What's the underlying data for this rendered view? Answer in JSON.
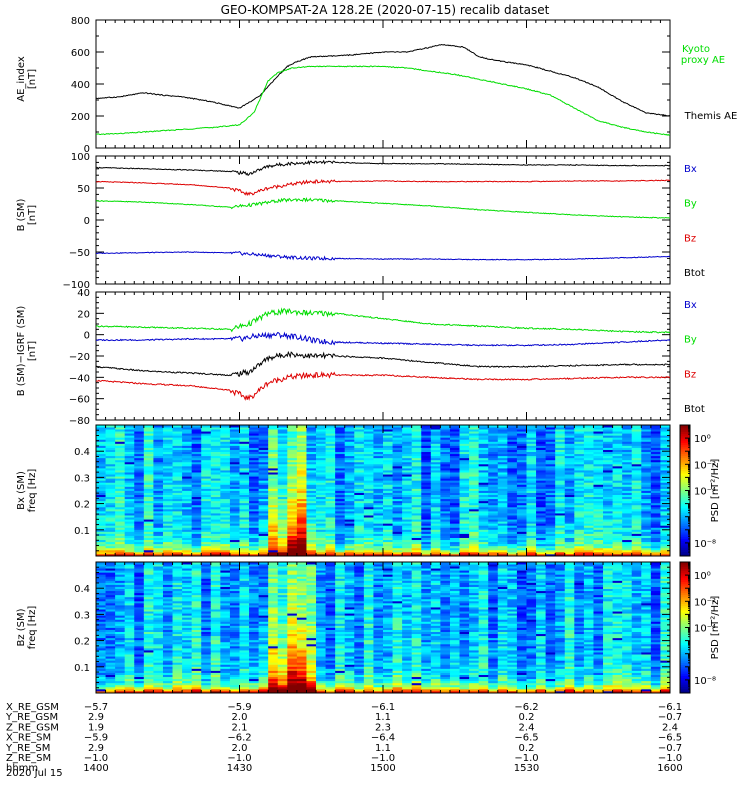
{
  "title": "GEO-KOMPSAT-2A 128.2E (2020-07-15) recalib dataset",
  "date_label": "2020 Jul 15",
  "chart_data": [
    {
      "type": "line",
      "id": "ae",
      "ylabel": [
        "AE_index",
        "[nT]"
      ],
      "ylim": [
        0,
        800
      ],
      "yticks": [
        0,
        200,
        400,
        600,
        800
      ],
      "yminor": 100,
      "xlim": [
        0,
        120
      ],
      "x_unit": "minutes after 14:00 UT",
      "series": [
        {
          "name": "Themis AE",
          "color": "#000000",
          "x": [
            0,
            5,
            10,
            14,
            18,
            24,
            30,
            34,
            38,
            40,
            42,
            45,
            50,
            55,
            60,
            65,
            70,
            72,
            74,
            77,
            80,
            85,
            90,
            95,
            100,
            105,
            110,
            115,
            120
          ],
          "values": [
            310,
            320,
            345,
            330,
            320,
            290,
            250,
            320,
            450,
            510,
            540,
            570,
            575,
            585,
            600,
            600,
            630,
            645,
            640,
            630,
            570,
            540,
            520,
            480,
            440,
            380,
            290,
            220,
            200
          ]
        },
        {
          "name": "Kyoto proxy AE",
          "color": "#00dd00",
          "x": [
            0,
            5,
            10,
            15,
            20,
            25,
            30,
            33,
            36,
            38,
            41,
            45,
            50,
            55,
            60,
            65,
            70,
            75,
            80,
            85,
            90,
            95,
            100,
            105,
            110,
            115,
            120
          ],
          "values": [
            85,
            90,
            100,
            110,
            120,
            130,
            145,
            220,
            420,
            470,
            500,
            510,
            510,
            510,
            510,
            500,
            480,
            460,
            430,
            400,
            370,
            330,
            250,
            170,
            130,
            100,
            80
          ]
        }
      ],
      "legend_order": [
        "Kyoto",
        "proxy AE",
        "Themis AE"
      ]
    },
    {
      "type": "line",
      "id": "bsm",
      "ylabel": [
        "B (SM)",
        "[nT]"
      ],
      "ylim": [
        -100,
        100
      ],
      "yticks": [
        -100,
        -50,
        0,
        50,
        100
      ],
      "yminor": 10,
      "xlim": [
        0,
        120
      ],
      "series": [
        {
          "name": "Bx",
          "color": "#0000cc",
          "x": [
            0,
            10,
            20,
            30,
            35,
            40,
            45,
            50,
            60,
            70,
            80,
            90,
            100,
            110,
            120
          ],
          "values": [
            -52,
            -51,
            -50,
            -52,
            -55,
            -58,
            -60,
            -60,
            -61,
            -61,
            -62,
            -62,
            -61,
            -59,
            -57
          ]
        },
        {
          "name": "By",
          "color": "#00dd00",
          "x": [
            0,
            10,
            20,
            28,
            33,
            38,
            42,
            50,
            60,
            70,
            80,
            90,
            100,
            110,
            120
          ],
          "values": [
            30,
            28,
            24,
            20,
            24,
            30,
            32,
            30,
            26,
            22,
            16,
            12,
            8,
            5,
            3
          ]
        },
        {
          "name": "Bz",
          "color": "#dd0000",
          "x": [
            0,
            10,
            20,
            28,
            32,
            36,
            40,
            45,
            50,
            60,
            70,
            80,
            90,
            100,
            110,
            120
          ],
          "values": [
            60,
            58,
            55,
            50,
            40,
            50,
            55,
            60,
            60,
            61,
            60,
            60,
            60,
            61,
            61,
            62
          ]
        },
        {
          "name": "Btot",
          "color": "#000000",
          "x": [
            0,
            10,
            20,
            28,
            32,
            36,
            40,
            45,
            50,
            60,
            70,
            80,
            90,
            100,
            110,
            120
          ],
          "values": [
            82,
            80,
            78,
            76,
            72,
            84,
            88,
            90,
            90,
            88,
            88,
            87,
            86,
            86,
            85,
            85
          ]
        }
      ],
      "legend_order": [
        "Bx",
        "By",
        "Bz",
        "Btot"
      ]
    },
    {
      "type": "line",
      "id": "dbsm",
      "ylabel": [
        "B (SM)−IGRF (SM)",
        "[nT]"
      ],
      "ylim": [
        -80,
        40
      ],
      "yticks": [
        -80,
        -60,
        -40,
        -20,
        0,
        20,
        40
      ],
      "yminor": 5,
      "xlim": [
        0,
        120
      ],
      "series": [
        {
          "name": "Bx",
          "color": "#0000cc",
          "x": [
            0,
            10,
            20,
            30,
            34,
            38,
            42,
            46,
            50,
            60,
            70,
            80,
            90,
            100,
            110,
            120
          ],
          "values": [
            -5,
            -5,
            -4,
            -4,
            -1,
            0,
            -2,
            -6,
            -7,
            -8,
            -9,
            -10,
            -10,
            -9,
            -7,
            -5
          ]
        },
        {
          "name": "By",
          "color": "#00dd00",
          "x": [
            0,
            10,
            20,
            28,
            32,
            36,
            40,
            45,
            50,
            60,
            70,
            80,
            90,
            100,
            110,
            120
          ],
          "values": [
            8,
            7,
            6,
            5,
            10,
            20,
            22,
            20,
            20,
            15,
            10,
            8,
            6,
            5,
            3,
            2
          ]
        },
        {
          "name": "Bz",
          "color": "#dd0000",
          "x": [
            0,
            10,
            20,
            28,
            32,
            36,
            40,
            45,
            50,
            60,
            70,
            80,
            90,
            100,
            110,
            120
          ],
          "values": [
            -43,
            -46,
            -48,
            -52,
            -60,
            -45,
            -40,
            -38,
            -38,
            -38,
            -40,
            -42,
            -42,
            -41,
            -40,
            -40
          ]
        },
        {
          "name": "Btot",
          "color": "#000000",
          "x": [
            0,
            10,
            20,
            28,
            32,
            36,
            40,
            45,
            50,
            60,
            70,
            80,
            90,
            100,
            110,
            120
          ],
          "values": [
            -30,
            -34,
            -36,
            -38,
            -35,
            -22,
            -18,
            -20,
            -20,
            -22,
            -26,
            -30,
            -30,
            -29,
            -28,
            -28
          ]
        }
      ],
      "legend_order": [
        "Bx",
        "By",
        "Bz",
        "Btot"
      ]
    },
    {
      "type": "heatmap",
      "id": "bx_spec",
      "ylabel": [
        "Bx (SM)",
        "freq [Hz]"
      ],
      "ylim": [
        0,
        0.5
      ],
      "yticks": [
        0.1,
        0.2,
        0.3,
        0.4
      ],
      "xlim": [
        0,
        120
      ],
      "colorbar": {
        "label": "PSD [nT²/Hz]",
        "scale": "log",
        "range": [
          1e-09,
          10.0
        ],
        "ticks": [
          {
            "v": 1,
            "t": "10⁰"
          },
          {
            "v": 0.01,
            "t": "10⁻²"
          },
          {
            "v": 0.0001,
            "t": "10⁻⁴"
          },
          {
            "v": 1e-08,
            "t": "10⁻⁸"
          }
        ]
      },
      "activity_windows": [
        {
          "center": 42,
          "width": 3,
          "strength": 1.0
        },
        {
          "center": 38,
          "width": 3,
          "strength": 0.55
        }
      ],
      "background_level": 0.3
    },
    {
      "type": "heatmap",
      "id": "bz_spec",
      "ylabel": [
        "Bz (SM)",
        "freq [Hz]"
      ],
      "ylim": [
        0,
        0.5
      ],
      "yticks": [
        0.1,
        0.2,
        0.3,
        0.4
      ],
      "xlim": [
        0,
        120
      ],
      "colorbar": {
        "label": "PSD [nT²/Hz]",
        "scale": "log",
        "range": [
          1e-09,
          10.0
        ],
        "ticks": [
          {
            "v": 1,
            "t": "10⁰"
          },
          {
            "v": 0.01,
            "t": "10⁻²"
          },
          {
            "v": 0.0001,
            "t": "10⁻⁴"
          },
          {
            "v": 1e-08,
            "t": "10⁻⁸"
          }
        ]
      },
      "activity_windows": [
        {
          "center": 42,
          "width": 3,
          "strength": 1.0
        },
        {
          "center": 38,
          "width": 4,
          "strength": 0.6
        }
      ],
      "background_level": 0.3
    }
  ],
  "ephemeris": {
    "row_labels": [
      "X_RE_GSM",
      "Y_RE_GSM",
      "Z_RE_GSM",
      "X_RE_SM",
      "Y_RE_SM",
      "Z_RE_SM",
      "hhmm"
    ],
    "columns": [
      {
        "x": 0,
        "values": [
          "-5.7",
          "2.9",
          "1.9",
          "-5.9",
          "2.9",
          "-1.0",
          "1400"
        ]
      },
      {
        "x": 30,
        "values": [
          "-5.9",
          "2.0",
          "2.1",
          "-6.2",
          "2.0",
          "-1.0",
          "1430"
        ]
      },
      {
        "x": 60,
        "values": [
          "-6.1",
          "1.1",
          "2.3",
          "-6.4",
          "1.1",
          "-1.0",
          "1500"
        ]
      },
      {
        "x": 90,
        "values": [
          "-6.2",
          "0.2",
          "2.4",
          "-6.5",
          "0.2",
          "-1.0",
          "1530"
        ]
      },
      {
        "x": 120,
        "values": [
          "-6.1",
          "-0.7",
          "2.4",
          "-6.5",
          "-0.7",
          "-1.0",
          "1600"
        ]
      }
    ]
  }
}
